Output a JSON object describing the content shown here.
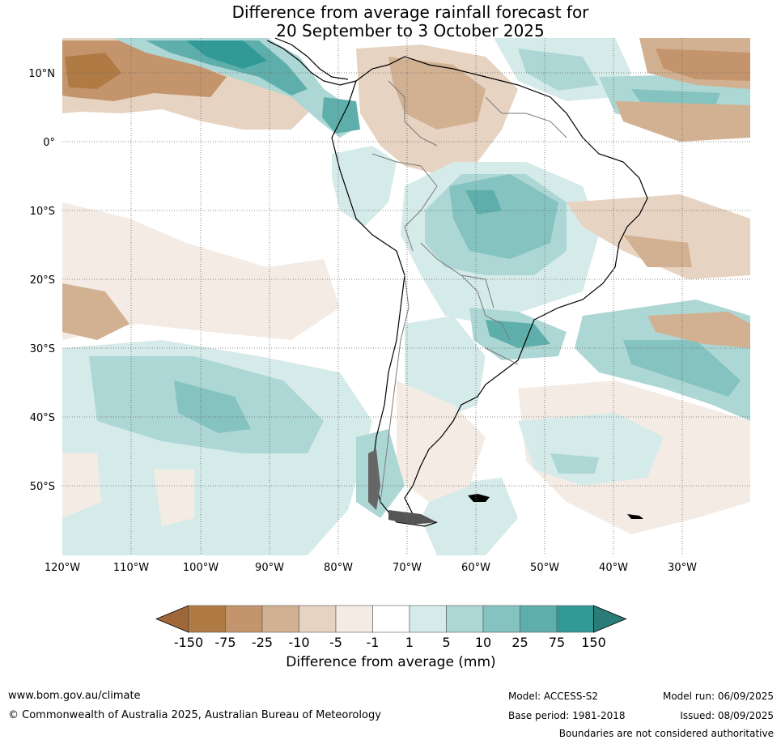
{
  "title": {
    "line1": "Difference from average rainfall forecast for",
    "line2": "20 September to 3 October 2025"
  },
  "map": {
    "region": "South America",
    "lon_labels": [
      "120°W",
      "110°W",
      "100°W",
      "90°W",
      "80°W",
      "70°W",
      "60°W",
      "50°W",
      "40°W",
      "30°W"
    ],
    "lat_labels": [
      "10°N",
      "0°",
      "10°S",
      "20°S",
      "30°S",
      "40°S",
      "50°S"
    ],
    "grid": "dotted"
  },
  "colorbar": {
    "title": "Difference from average (mm)",
    "ticks": [
      "-150",
      "-75",
      "-25",
      "-10",
      "-5",
      "-1",
      "1",
      "5",
      "10",
      "25",
      "75",
      "150"
    ],
    "colors": [
      "#a0673a",
      "#b07a44",
      "#c4956c",
      "#d2b192",
      "#e6d3c1",
      "#f4ebe4",
      "#ffffff",
      "#d5ebe9",
      "#acd7d5",
      "#85c3c0",
      "#5eafac",
      "#319a96",
      "#2a7c79"
    ]
  },
  "footer": {
    "website": "www.bom.gov.au/climate",
    "copyright": "© Commonwealth of Australia 2025, Australian Bureau of Meteorology",
    "model": "Model: ACCESS-S2",
    "base_period": "Base period: 1981-2018",
    "model_run": "Model run: 06/09/2025",
    "issued": "Issued: 08/09/2025",
    "disclaimer": "Boundaries are not considered authoritative"
  }
}
